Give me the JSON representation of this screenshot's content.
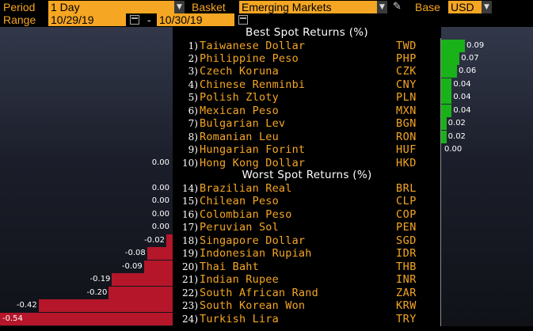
{
  "toolbar": {
    "period_label": "Period",
    "period_value": "1 Day",
    "basket_label": "Basket",
    "basket_value": "Emerging Markets",
    "base_label": "Base",
    "base_value": "USD",
    "range_label": "Range",
    "range_start": "10/29/19",
    "range_sep": "-",
    "range_end": "10/30/19"
  },
  "headings": {
    "best": "Best Spot Returns (%)",
    "worst": "Worst Spot Returns (%)"
  },
  "colors": {
    "accent": "#f5a623",
    "positive": "#19b219",
    "negative": "#b5162a"
  },
  "chart_data": {
    "type": "bar",
    "unit": "%",
    "best": [
      {
        "rank": "1)",
        "currency": "Taiwanese Dollar",
        "code": "TWD",
        "value": 0.09,
        "label": "0.09"
      },
      {
        "rank": "2)",
        "currency": "Philippine Peso",
        "code": "PHP",
        "value": 0.07,
        "label": "0.07"
      },
      {
        "rank": "3)",
        "currency": "Czech Koruna",
        "code": "CZK",
        "value": 0.06,
        "label": "0.06"
      },
      {
        "rank": "4)",
        "currency": "Chinese Renminbi",
        "code": "CNY",
        "value": 0.04,
        "label": "0.04"
      },
      {
        "rank": "5)",
        "currency": "Polish Zloty",
        "code": "PLN",
        "value": 0.04,
        "label": "0.04"
      },
      {
        "rank": "6)",
        "currency": "Mexican Peso",
        "code": "MXN",
        "value": 0.04,
        "label": "0.04"
      },
      {
        "rank": "7)",
        "currency": "Bulgarian Lev",
        "code": "BGN",
        "value": 0.02,
        "label": "0.02"
      },
      {
        "rank": "8)",
        "currency": "Romanian Leu",
        "code": "RON",
        "value": 0.02,
        "label": "0.02"
      },
      {
        "rank": "9)",
        "currency": "Hungarian Forint",
        "code": "HUF",
        "value": 0.0,
        "label": "0.00"
      },
      {
        "rank": "10)",
        "currency": "Hong Kong Dollar",
        "code": "HKD",
        "value": 0.0,
        "label": "0.00"
      }
    ],
    "worst": [
      {
        "rank": "14)",
        "currency": "Brazilian Real",
        "code": "BRL",
        "value": 0.0,
        "label": "0.00"
      },
      {
        "rank": "15)",
        "currency": "Chilean Peso",
        "code": "CLP",
        "value": 0.0,
        "label": "0.00"
      },
      {
        "rank": "16)",
        "currency": "Colombian Peso",
        "code": "COP",
        "value": 0.0,
        "label": "0.00"
      },
      {
        "rank": "17)",
        "currency": "Peruvian Sol",
        "code": "PEN",
        "value": 0.0,
        "label": "0.00"
      },
      {
        "rank": "18)",
        "currency": "Singapore Dollar",
        "code": "SGD",
        "value": -0.02,
        "label": "-0.02"
      },
      {
        "rank": "19)",
        "currency": "Indonesian Rupiah",
        "code": "IDR",
        "value": -0.08,
        "label": "-0.08"
      },
      {
        "rank": "20)",
        "currency": "Thai Baht",
        "code": "THB",
        "value": -0.09,
        "label": "-0.09"
      },
      {
        "rank": "21)",
        "currency": "Indian Rupee",
        "code": "INR",
        "value": -0.19,
        "label": "-0.19"
      },
      {
        "rank": "22)",
        "currency": "South African Rand",
        "code": "ZAR",
        "value": -0.2,
        "label": "-0.20"
      },
      {
        "rank": "23)",
        "currency": "South Korean Won",
        "code": "KRW",
        "value": -0.42,
        "label": "-0.42"
      },
      {
        "rank": "24)",
        "currency": "Turkish Lira",
        "code": "TRY",
        "value": -0.54,
        "label": "-0.54"
      }
    ]
  }
}
